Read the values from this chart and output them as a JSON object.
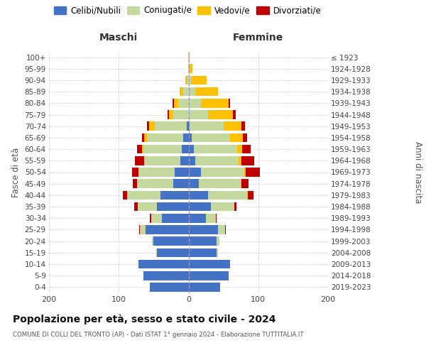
{
  "age_groups": [
    "0-4",
    "5-9",
    "10-14",
    "15-19",
    "20-24",
    "25-29",
    "30-34",
    "35-39",
    "40-44",
    "45-49",
    "50-54",
    "55-59",
    "60-64",
    "65-69",
    "70-74",
    "75-79",
    "80-84",
    "85-89",
    "90-94",
    "95-99",
    "100+"
  ],
  "birth_years": [
    "2019-2023",
    "2014-2018",
    "2009-2013",
    "2004-2008",
    "1999-2003",
    "1994-1998",
    "1989-1993",
    "1984-1988",
    "1979-1983",
    "1974-1978",
    "1969-1973",
    "1964-1968",
    "1959-1963",
    "1954-1958",
    "1949-1953",
    "1944-1948",
    "1939-1943",
    "1934-1938",
    "1929-1933",
    "1924-1928",
    "≤ 1923"
  ],
  "males": {
    "celibi": [
      55,
      65,
      72,
      45,
      50,
      62,
      38,
      45,
      40,
      22,
      20,
      12,
      10,
      8,
      3,
      0,
      0,
      0,
      0,
      0,
      0
    ],
    "coniugati": [
      0,
      0,
      0,
      1,
      2,
      8,
      15,
      28,
      48,
      52,
      52,
      52,
      55,
      52,
      45,
      22,
      15,
      8,
      2,
      1,
      1
    ],
    "vedovi": [
      0,
      0,
      0,
      0,
      0,
      0,
      0,
      0,
      0,
      0,
      0,
      0,
      2,
      4,
      8,
      6,
      6,
      5,
      3,
      0,
      0
    ],
    "divorziati": [
      0,
      0,
      0,
      0,
      0,
      1,
      2,
      5,
      6,
      6,
      9,
      13,
      7,
      3,
      4,
      2,
      2,
      0,
      0,
      0,
      0
    ]
  },
  "females": {
    "nubili": [
      45,
      58,
      60,
      40,
      40,
      42,
      25,
      32,
      28,
      15,
      18,
      10,
      8,
      5,
      2,
      0,
      0,
      0,
      0,
      0,
      0
    ],
    "coniugate": [
      0,
      0,
      0,
      2,
      4,
      10,
      14,
      34,
      56,
      60,
      62,
      62,
      62,
      55,
      48,
      28,
      18,
      10,
      4,
      1,
      0
    ],
    "vedove": [
      0,
      0,
      0,
      0,
      0,
      0,
      0,
      0,
      1,
      1,
      2,
      4,
      7,
      18,
      26,
      36,
      40,
      32,
      22,
      5,
      2
    ],
    "divorziate": [
      0,
      0,
      0,
      0,
      0,
      1,
      1,
      3,
      8,
      10,
      20,
      18,
      12,
      6,
      5,
      4,
      2,
      0,
      0,
      0,
      0
    ]
  },
  "colors": {
    "celibi_nubili": "#4472c4",
    "coniugati": "#c5d89d",
    "vedovi": "#ffc000",
    "divorziati": "#c00000"
  },
  "title": "Popolazione per età, sesso e stato civile - 2024",
  "subtitle": "COMUNE DI COLLI DEL TRONTO (AP) - Dati ISTAT 1° gennaio 2024 - Elaborazione TUTTITALIA.IT",
  "xlabel_left": "Maschi",
  "xlabel_right": "Femmine",
  "ylabel_left": "Fasce di età",
  "ylabel_right": "Anni di nascita",
  "xlim": 200,
  "background_color": "#ffffff",
  "grid_color": "#cccccc"
}
